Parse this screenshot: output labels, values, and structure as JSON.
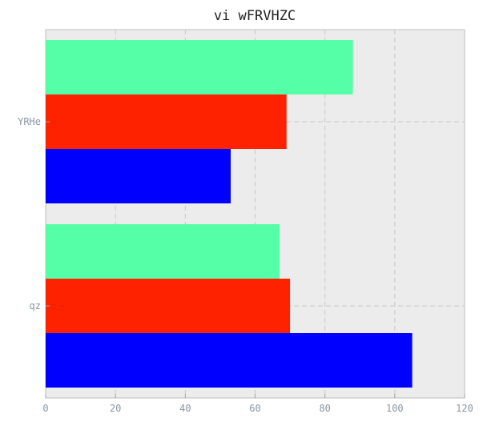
{
  "chart_data": {
    "type": "bar",
    "orientation": "horizontal",
    "title": "vi wFRVHZC",
    "xlabel": "",
    "ylabel": "",
    "categories": [
      "qz",
      "YRHe"
    ],
    "series": [
      {
        "color": "#0000ff",
        "values": [
          105,
          53
        ]
      },
      {
        "color": "#ff2200",
        "values": [
          70,
          69
        ]
      },
      {
        "color": "#55ffa8",
        "values": [
          67,
          88
        ]
      }
    ],
    "xlim": [
      0,
      120
    ],
    "xticks": [
      "0",
      "20",
      "40",
      "60",
      "80",
      "100",
      "120"
    ],
    "grid": true
  }
}
